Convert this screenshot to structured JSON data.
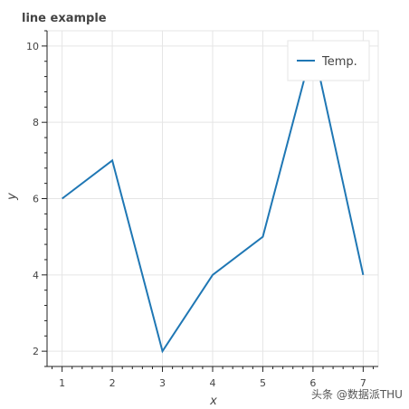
{
  "chart_data": {
    "type": "line",
    "title": "line example",
    "xlabel": "x",
    "ylabel": "y",
    "x": [
      1,
      2,
      3,
      4,
      5,
      6,
      7
    ],
    "series": [
      {
        "name": "Temp.",
        "values": [
          6,
          7,
          2,
          4,
          5,
          10,
          4
        ],
        "color": "#1f77b4"
      }
    ],
    "xlim": [
      0.7,
      7.3
    ],
    "ylim": [
      1.6,
      10.4
    ],
    "x_ticks": [
      1,
      2,
      3,
      4,
      5,
      6,
      7
    ],
    "y_ticks": [
      2,
      4,
      6,
      8,
      10
    ],
    "grid": true,
    "legend_position": "top-right"
  },
  "watermark": "头条 @数据派THU"
}
